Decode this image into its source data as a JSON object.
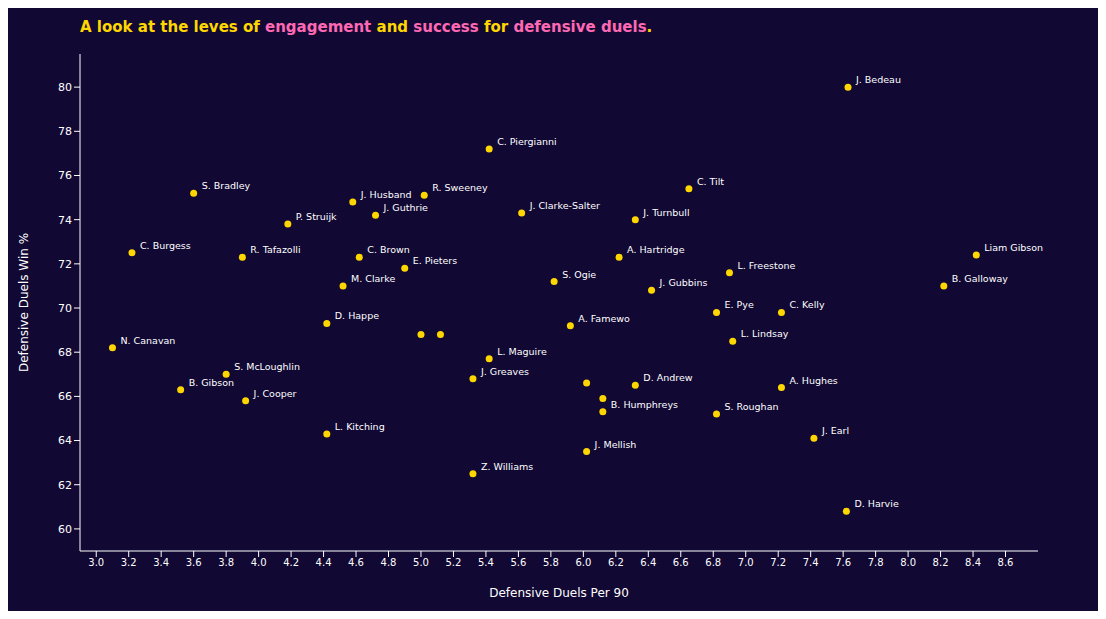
{
  "chart_data": {
    "type": "scatter",
    "title_parts": [
      {
        "text": "A look at the leves of ",
        "color": "#FFD700"
      },
      {
        "text": "engagement",
        "color": "#FF69B4"
      },
      {
        "text": " and ",
        "color": "#FFD700"
      },
      {
        "text": "success",
        "color": "#FF69B4"
      },
      {
        "text": " for ",
        "color": "#FFD700"
      },
      {
        "text": "defensive duels",
        "color": "#FF69B4"
      },
      {
        "text": ".",
        "color": "#FFD700"
      }
    ],
    "xlabel": "Defensive Duels Per 90",
    "ylabel": "Defensive Duels Win %",
    "color": "#FFD700",
    "grid": false,
    "xlim": [
      2.9,
      8.8
    ],
    "ylim": [
      59.0,
      81.5
    ],
    "xticks": [
      {
        "value": 3.0,
        "label": "3.0"
      },
      3.2,
      3.4,
      3.6,
      3.8,
      {
        "value": 4.0,
        "label": "4.0"
      },
      4.2,
      4.4,
      4.6,
      4.8,
      {
        "value": 5.0,
        "label": "5.0"
      },
      5.2,
      5.4,
      5.6,
      5.8,
      {
        "value": 6.0,
        "label": "6.0"
      },
      6.2,
      6.4,
      6.6,
      6.8,
      {
        "value": 7.0,
        "label": "7.0"
      },
      7.2,
      7.4,
      7.6,
      7.8,
      {
        "value": 8.0,
        "label": "8.0"
      },
      8.2,
      8.4,
      8.6
    ],
    "yticks": [
      60,
      62,
      64,
      66,
      68,
      70,
      72,
      74,
      76,
      78,
      80
    ],
    "x": [
      7.63,
      5.42,
      3.6,
      5.02,
      4.58,
      6.65,
      4.18,
      4.72,
      5.62,
      6.32,
      3.22,
      3.9,
      4.62,
      4.9,
      6.22,
      6.9,
      8.42,
      8.22,
      4.52,
      5.82,
      6.42,
      6.82,
      7.22,
      4.42,
      5.92,
      6.92,
      3.1,
      5.42,
      5.32,
      3.8,
      6.32,
      7.22,
      3.52,
      3.92,
      6.12,
      6.82,
      4.42,
      7.42,
      6.02,
      5.32,
      7.62,
      5.0,
      5.12,
      6.02,
      6.12
    ],
    "y": [
      80.0,
      77.2,
      75.2,
      75.1,
      74.8,
      75.4,
      73.8,
      74.2,
      74.3,
      74.0,
      72.5,
      72.3,
      72.3,
      71.8,
      72.3,
      71.6,
      72.4,
      71.0,
      71.0,
      71.2,
      70.8,
      69.8,
      69.8,
      69.3,
      69.2,
      68.5,
      68.2,
      67.7,
      66.8,
      67.0,
      66.5,
      66.4,
      66.3,
      65.8,
      65.3,
      65.2,
      64.3,
      64.1,
      63.5,
      62.5,
      60.8,
      68.8,
      68.8,
      66.6,
      65.9
    ],
    "labels": [
      "J. Bedeau",
      "C. Piergianni",
      "S. Bradley",
      "R. Sweeney",
      "J. Husband",
      "C. Tilt",
      "P. Struijk",
      "J. Guthrie",
      "J. Clarke-Salter",
      "J. Turnbull",
      "C. Burgess",
      "R. Tafazolli",
      "C. Brown",
      "E. Pieters",
      "A. Hartridge",
      "L. Freestone",
      "Liam Gibson",
      "B. Galloway",
      "M. Clarke",
      "S. Ogie",
      "J. Gubbins",
      "E. Pye",
      "C. Kelly",
      "D. Happe",
      "A. Famewo",
      "L. Lindsay",
      "N. Canavan",
      "L. Maguire",
      "J. Greaves",
      "S. McLoughlin",
      "D. Andrew",
      "A. Hughes",
      "B. Gibson",
      "J. Cooper",
      "B. Humphreys",
      "S. Roughan",
      "L. Kitching",
      "J. Earl",
      "J. Mellish",
      "Z. Williams",
      "D. Harvie",
      null,
      null,
      null,
      null
    ]
  }
}
